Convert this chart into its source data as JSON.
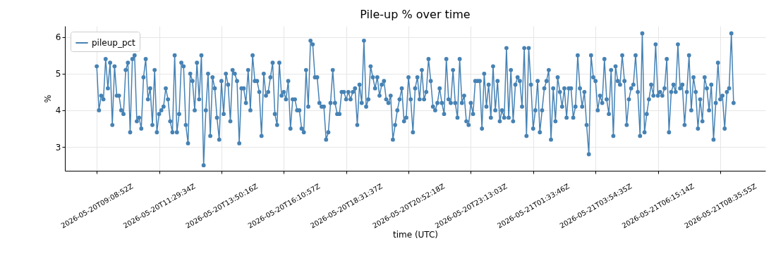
{
  "chart_data": {
    "type": "line",
    "title": "Pile-up % over time",
    "xlabel": "time (UTC)",
    "ylabel": "%",
    "categories": [
      "2026-05-20T09:08:52Z",
      null,
      null,
      null,
      null,
      null,
      null,
      null,
      null,
      null,
      null,
      null,
      null,
      null,
      null,
      null,
      null,
      null,
      null,
      null,
      null,
      null,
      null,
      null,
      null,
      null,
      null,
      null,
      "2026-05-20T11:29:34Z",
      null,
      null,
      null,
      null,
      null,
      null,
      null,
      null,
      null,
      null,
      null,
      null,
      null,
      null,
      null,
      null,
      null,
      null,
      null,
      null,
      null,
      null,
      null,
      null,
      null,
      null,
      null,
      "2026-05-20T13:50:16Z",
      null,
      null,
      null,
      null,
      null,
      null,
      null,
      null,
      null,
      null,
      null,
      null,
      null,
      null,
      null,
      null,
      null,
      null,
      null,
      null,
      null,
      null,
      null,
      null,
      null,
      null,
      null,
      "2026-05-20T16:10:57Z",
      null,
      null,
      null,
      null,
      null,
      null,
      null,
      null,
      null,
      null,
      null,
      null,
      null,
      null,
      null,
      null,
      null,
      null,
      null,
      null,
      null,
      null,
      null,
      null,
      null,
      null,
      null,
      "2026-05-20T18:31:37Z",
      null,
      null,
      null,
      null,
      null,
      null,
      null,
      null,
      null,
      null,
      null,
      null,
      null,
      null,
      null,
      null,
      null,
      null,
      null,
      null,
      null,
      null,
      null,
      null,
      null,
      null,
      null,
      "2026-05-20T20:52:18Z",
      null,
      null,
      null,
      null,
      null,
      null,
      null,
      null,
      null,
      null,
      null,
      null,
      null,
      null,
      null,
      null,
      null,
      null,
      null,
      null,
      null,
      null,
      null,
      null,
      null,
      null,
      null,
      "2026-05-20T23:13:03Z",
      null,
      null,
      null,
      null,
      null,
      null,
      null,
      null,
      null,
      null,
      null,
      null,
      null,
      null,
      null,
      null,
      null,
      null,
      null,
      null,
      null,
      null,
      null,
      null,
      null,
      null,
      null,
      "2026-05-21T01:33:46Z",
      null,
      null,
      null,
      null,
      null,
      null,
      null,
      null,
      null,
      null,
      null,
      null,
      null,
      null,
      null,
      null,
      null,
      null,
      null,
      null,
      null,
      null,
      null,
      null,
      null,
      null,
      null,
      "2026-05-21T03:54:35Z",
      null,
      null,
      null,
      null,
      null,
      null,
      null,
      null,
      null,
      null,
      null,
      null,
      null,
      null,
      null,
      null,
      null,
      null,
      null,
      null,
      null,
      null,
      null,
      null,
      null,
      null,
      null,
      "2026-05-21T06:15:14Z",
      null,
      null,
      null,
      null,
      null,
      null,
      null,
      null,
      null,
      null,
      null,
      null,
      null,
      null,
      null,
      null,
      null,
      null,
      null,
      null,
      null,
      null,
      null,
      null,
      null,
      null,
      null,
      "2026-05-21T08:35:55Z",
      null,
      null,
      null,
      null,
      null,
      null
    ],
    "series": [
      {
        "name": "pileup_pct",
        "color": "#4682b4",
        "values": [
          5.2,
          4.0,
          4.4,
          4.3,
          5.4,
          4.6,
          5.3,
          3.6,
          5.2,
          4.4,
          4.4,
          4.0,
          3.9,
          5.1,
          5.3,
          3.4,
          5.4,
          5.5,
          3.7,
          3.8,
          3.5,
          4.9,
          5.4,
          4.3,
          4.6,
          3.6,
          5.1,
          3.4,
          3.9,
          4.0,
          4.1,
          4.6,
          4.3,
          3.7,
          3.4,
          5.5,
          3.4,
          3.9,
          5.3,
          5.2,
          3.6,
          3.1,
          5.0,
          4.8,
          4.0,
          5.3,
          4.3,
          5.5,
          2.5,
          4.0,
          5.0,
          3.3,
          4.9,
          4.6,
          3.8,
          3.2,
          4.8,
          3.9,
          5.0,
          4.7,
          3.7,
          5.1,
          5.0,
          4.8,
          3.1,
          4.6,
          4.6,
          4.2,
          5.1,
          4.0,
          5.5,
          4.8,
          4.8,
          4.5,
          3.3,
          5.0,
          4.4,
          4.5,
          4.9,
          5.3,
          3.9,
          3.6,
          5.3,
          4.4,
          4.5,
          4.3,
          4.8,
          3.5,
          4.3,
          4.3,
          4.0,
          4.0,
          3.5,
          3.4,
          5.1,
          4.1,
          5.9,
          5.8,
          4.9,
          4.9,
          4.2,
          4.1,
          4.1,
          3.2,
          3.4,
          4.2,
          5.1,
          4.2,
          3.9,
          3.9,
          4.5,
          4.5,
          4.3,
          4.5,
          4.3,
          4.5,
          4.6,
          3.6,
          4.7,
          4.2,
          5.9,
          4.1,
          4.3,
          5.2,
          4.9,
          4.6,
          4.9,
          4.4,
          4.7,
          4.8,
          4.3,
          4.2,
          4.4,
          3.2,
          3.6,
          4.0,
          4.3,
          4.6,
          3.7,
          3.8,
          4.9,
          4.3,
          3.4,
          4.6,
          4.9,
          4.3,
          5.1,
          4.3,
          4.5,
          5.4,
          4.8,
          4.1,
          4.0,
          4.2,
          4.6,
          4.2,
          3.9,
          5.4,
          4.3,
          4.2,
          5.1,
          4.2,
          3.8,
          5.4,
          4.2,
          4.4,
          3.7,
          3.6,
          4.2,
          3.9,
          4.8,
          4.8,
          4.8,
          3.5,
          5.0,
          4.1,
          4.7,
          3.8,
          5.2,
          4.0,
          4.8,
          3.7,
          4.0,
          3.8,
          5.7,
          3.8,
          5.1,
          3.7,
          4.7,
          4.9,
          4.8,
          4.1,
          5.7,
          3.3,
          5.7,
          4.7,
          3.5,
          4.0,
          4.8,
          3.4,
          4.0,
          4.6,
          4.8,
          5.1,
          3.2,
          4.6,
          3.7,
          4.9,
          4.5,
          4.1,
          4.6,
          3.8,
          4.6,
          4.6,
          3.8,
          4.1,
          5.5,
          4.6,
          4.1,
          4.5,
          3.6,
          2.8,
          5.5,
          4.9,
          4.8,
          4.0,
          4.4,
          4.2,
          5.4,
          4.3,
          3.9,
          5.1,
          3.3,
          5.2,
          4.8,
          4.7,
          5.5,
          4.8,
          3.6,
          4.3,
          4.6,
          4.7,
          5.5,
          4.5,
          3.3,
          6.1,
          3.4,
          3.9,
          4.3,
          4.7,
          4.4,
          5.8,
          4.4,
          4.5,
          4.4,
          4.6,
          5.4,
          3.4,
          4.5,
          4.7,
          4.5,
          5.8,
          4.6,
          4.7,
          3.6,
          4.5,
          5.5,
          4.0,
          4.9,
          4.5,
          3.5,
          4.3,
          3.7,
          4.9,
          4.6,
          4.0,
          4.7,
          3.2,
          4.2,
          5.3,
          4.3,
          4.4,
          3.5,
          4.5,
          4.6,
          6.1,
          4.2
        ]
      }
    ],
    "ylim": [
      2.35,
      6.3
    ],
    "yticks": [
      3,
      4,
      5,
      6
    ],
    "grid": true,
    "legend": "top left",
    "marker": "circle",
    "line_style": "solid"
  }
}
